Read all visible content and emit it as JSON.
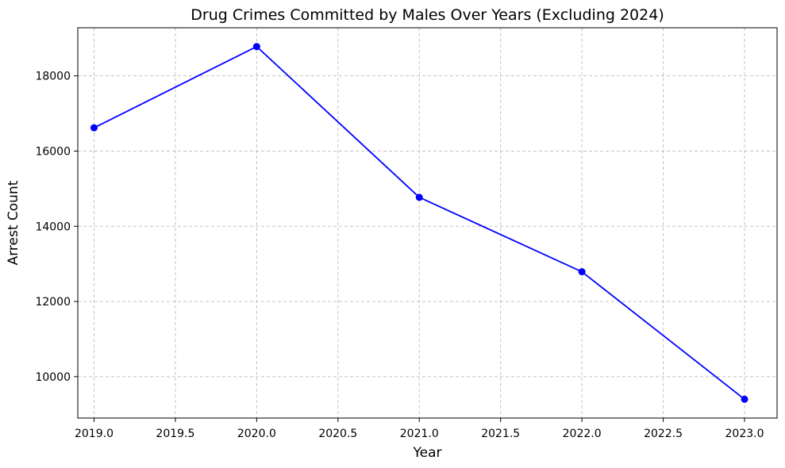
{
  "chart_data": {
    "type": "line",
    "title": "Drug Crimes Committed by Males Over Years (Excluding 2024)",
    "xlabel": "Year",
    "ylabel": "Arrest Count",
    "xlim": [
      2018.9,
      2023.2
    ],
    "ylim": [
      8900,
      19280
    ],
    "x_ticks": [
      2019.0,
      2019.5,
      2020.0,
      2020.5,
      2021.0,
      2021.5,
      2022.0,
      2022.5,
      2023.0
    ],
    "x_tick_labels": [
      "2019.0",
      "2019.5",
      "2020.0",
      "2020.5",
      "2021.0",
      "2021.5",
      "2022.0",
      "2022.5",
      "2023.0"
    ],
    "y_ticks": [
      10000,
      12000,
      14000,
      16000,
      18000
    ],
    "y_tick_labels": [
      "10000",
      "12000",
      "14000",
      "16000",
      "18000"
    ],
    "grid": true,
    "series": [
      {
        "color": "#0000ff",
        "marker": "circle",
        "x": [
          2019,
          2020,
          2021,
          2022,
          2023
        ],
        "y": [
          16620,
          18780,
          14770,
          12790,
          9400
        ]
      }
    ]
  }
}
